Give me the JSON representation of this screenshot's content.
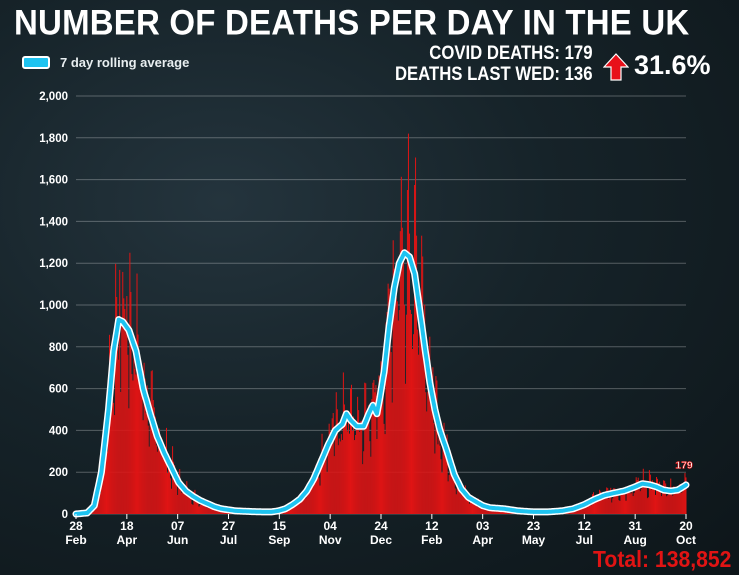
{
  "header": {
    "title": "NUMBER OF DEATHS PER DAY IN THE UK",
    "legend_label": "7 day rolling average",
    "covid_deaths_label": "COVID DEATHS: 179",
    "deaths_last_wed_label": "DEATHS LAST WED: 136",
    "change_icon": "arrow-up-icon",
    "change_pct": "31.6%",
    "total_label": "Total: 138,852"
  },
  "colors": {
    "bars": "#e01414",
    "rolling_average": "#1ec3f0",
    "rolling_outline": "#ffffff",
    "background": "#162329",
    "arrow": "#e8101a",
    "total": "#e01414"
  },
  "chart_data": {
    "type": "bar",
    "title": "NUMBER OF DEATHS PER DAY IN THE UK",
    "xlabel": "",
    "ylabel": "",
    "x_range": [
      "2020-02-28",
      "2021-10-20"
    ],
    "ylim": [
      0,
      2000
    ],
    "y_ticks": [
      0,
      200,
      400,
      600,
      800,
      1000,
      1200,
      1400,
      1600,
      1800,
      2000
    ],
    "y_tick_labels": [
      "0",
      "200",
      "400",
      "600",
      "800",
      "1,000",
      "1,200",
      "1,400",
      "1,600",
      "1,800",
      "2,000"
    ],
    "x_ticks": [
      {
        "date": "2020-02-28",
        "day": "28",
        "month": "Feb"
      },
      {
        "date": "2020-04-18",
        "day": "18",
        "month": "Apr"
      },
      {
        "date": "2020-06-07",
        "day": "07",
        "month": "Jun"
      },
      {
        "date": "2020-07-27",
        "day": "27",
        "month": "Jul"
      },
      {
        "date": "2020-09-15",
        "day": "15",
        "month": "Sep"
      },
      {
        "date": "2020-11-04",
        "day": "04",
        "month": "Nov"
      },
      {
        "date": "2020-12-24",
        "day": "24",
        "month": "Dec"
      },
      {
        "date": "2021-02-12",
        "day": "12",
        "month": "Feb"
      },
      {
        "date": "2021-04-03",
        "day": "03",
        "month": "Apr"
      },
      {
        "date": "2021-05-23",
        "day": "23",
        "month": "May"
      },
      {
        "date": "2021-07-12",
        "day": "12",
        "month": "Jul"
      },
      {
        "date": "2021-08-31",
        "day": "31",
        "month": "Aug"
      },
      {
        "date": "2021-10-20",
        "day": "20",
        "month": "Oct"
      }
    ],
    "grid": true,
    "series": [
      {
        "name": "7 day rolling average",
        "type": "line",
        "points": [
          [
            "2020-02-28",
            0
          ],
          [
            "2020-03-10",
            5
          ],
          [
            "2020-03-17",
            40
          ],
          [
            "2020-03-24",
            200
          ],
          [
            "2020-03-31",
            500
          ],
          [
            "2020-04-05",
            780
          ],
          [
            "2020-04-10",
            930
          ],
          [
            "2020-04-14",
            920
          ],
          [
            "2020-04-20",
            880
          ],
          [
            "2020-04-27",
            780
          ],
          [
            "2020-05-04",
            600
          ],
          [
            "2020-05-11",
            480
          ],
          [
            "2020-05-18",
            370
          ],
          [
            "2020-05-25",
            290
          ],
          [
            "2020-06-01",
            220
          ],
          [
            "2020-06-08",
            150
          ],
          [
            "2020-06-15",
            110
          ],
          [
            "2020-06-22",
            85
          ],
          [
            "2020-06-29",
            65
          ],
          [
            "2020-07-06",
            50
          ],
          [
            "2020-07-13",
            35
          ],
          [
            "2020-07-20",
            25
          ],
          [
            "2020-07-27",
            20
          ],
          [
            "2020-08-03",
            15
          ],
          [
            "2020-08-17",
            12
          ],
          [
            "2020-08-31",
            10
          ],
          [
            "2020-09-07",
            10
          ],
          [
            "2020-09-14",
            15
          ],
          [
            "2020-09-21",
            25
          ],
          [
            "2020-09-28",
            45
          ],
          [
            "2020-10-05",
            70
          ],
          [
            "2020-10-12",
            110
          ],
          [
            "2020-10-19",
            170
          ],
          [
            "2020-10-26",
            250
          ],
          [
            "2020-11-02",
            330
          ],
          [
            "2020-11-09",
            400
          ],
          [
            "2020-11-16",
            430
          ],
          [
            "2020-11-20",
            480
          ],
          [
            "2020-11-24",
            450
          ],
          [
            "2020-11-30",
            420
          ],
          [
            "2020-12-07",
            420
          ],
          [
            "2020-12-12",
            480
          ],
          [
            "2020-12-16",
            520
          ],
          [
            "2020-12-20",
            480
          ],
          [
            "2020-12-23",
            560
          ],
          [
            "2020-12-27",
            680
          ],
          [
            "2021-01-01",
            900
          ],
          [
            "2021-01-06",
            1080
          ],
          [
            "2021-01-11",
            1200
          ],
          [
            "2021-01-16",
            1250
          ],
          [
            "2021-01-21",
            1230
          ],
          [
            "2021-01-26",
            1150
          ],
          [
            "2021-01-31",
            980
          ],
          [
            "2021-02-05",
            800
          ],
          [
            "2021-02-10",
            630
          ],
          [
            "2021-02-15",
            500
          ],
          [
            "2021-02-20",
            400
          ],
          [
            "2021-02-27",
            300
          ],
          [
            "2021-03-06",
            190
          ],
          [
            "2021-03-13",
            120
          ],
          [
            "2021-03-20",
            80
          ],
          [
            "2021-03-27",
            60
          ],
          [
            "2021-04-03",
            40
          ],
          [
            "2021-04-10",
            30
          ],
          [
            "2021-04-24",
            25
          ],
          [
            "2021-05-08",
            15
          ],
          [
            "2021-05-23",
            10
          ],
          [
            "2021-06-06",
            10
          ],
          [
            "2021-06-20",
            15
          ],
          [
            "2021-07-01",
            25
          ],
          [
            "2021-07-12",
            45
          ],
          [
            "2021-07-22",
            70
          ],
          [
            "2021-08-01",
            90
          ],
          [
            "2021-08-10",
            100
          ],
          [
            "2021-08-20",
            110
          ],
          [
            "2021-08-31",
            130
          ],
          [
            "2021-09-07",
            145
          ],
          [
            "2021-09-14",
            140
          ],
          [
            "2021-09-21",
            130
          ],
          [
            "2021-09-28",
            115
          ],
          [
            "2021-10-05",
            110
          ],
          [
            "2021-10-12",
            115
          ],
          [
            "2021-10-20",
            139
          ]
        ]
      },
      {
        "name": "",
        "type": "bar",
        "values": "daily deaths (estimated from figure; peaks ≈1,250 Apr 2020, ≈1,820 Jan 2021)",
        "peaks": [
          [
            "2020-04-21",
            1250
          ],
          [
            "2021-01-20",
            1820
          ],
          [
            "2020-11-24",
            600
          ],
          [
            "2021-09-14",
            210
          ]
        ]
      }
    ],
    "annotations": [
      {
        "date": "2021-10-20",
        "value": 179,
        "label": "179"
      }
    ]
  }
}
